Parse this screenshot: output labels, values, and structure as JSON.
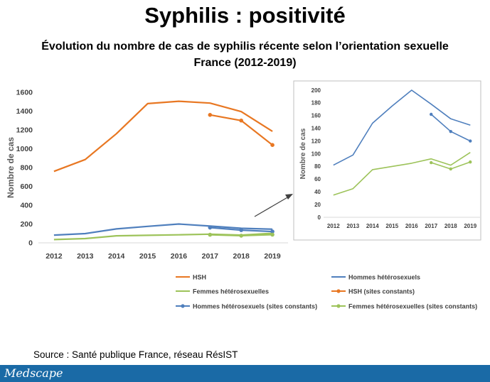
{
  "slide": {
    "title": "Syphilis : positivité",
    "subtitle_line1": "Évolution du nombre de cas de syphilis récente selon l’orientation sexuelle",
    "subtitle_line2": "France (2012-2019)",
    "source": "Source : Santé publique France, réseau RésIST",
    "brand": "Medscape"
  },
  "chart_data": [
    {
      "type": "line",
      "title": "",
      "xlabel": "",
      "ylabel": "Nombre de cas",
      "x": [
        "2012",
        "2013",
        "2014",
        "2015",
        "2016",
        "2017",
        "2018",
        "2019"
      ],
      "ylim": [
        0,
        1600
      ],
      "yticks": [
        0,
        200,
        400,
        600,
        800,
        1000,
        1200,
        1400,
        1600
      ],
      "grid": false,
      "legend": "bottom",
      "series": [
        {
          "name": "HSH",
          "color": "#e87722",
          "markers": false,
          "values": [
            760,
            885,
            1160,
            1480,
            1505,
            1485,
            1395,
            1185
          ]
        },
        {
          "name": "Hommes hétérosexuels",
          "color": "#4f7fbd",
          "markers": false,
          "values": [
            82,
            98,
            148,
            175,
            200,
            178,
            155,
            145
          ]
        },
        {
          "name": "Femmes hétérosexuelles",
          "color": "#9dc35a",
          "markers": false,
          "values": [
            35,
            45,
            75,
            80,
            85,
            92,
            82,
            102
          ]
        },
        {
          "name": "HSH (sites constants)",
          "color": "#e87722",
          "markers": true,
          "values": [
            null,
            null,
            null,
            null,
            null,
            1360,
            1300,
            1040
          ]
        },
        {
          "name": "Hommes hétérosexuels (sites constants)",
          "color": "#4f7fbd",
          "markers": true,
          "values": [
            null,
            null,
            null,
            null,
            null,
            162,
            135,
            120
          ]
        },
        {
          "name": "Femmes hétérosexuelles (sites constants)",
          "color": "#9dc35a",
          "markers": true,
          "values": [
            null,
            null,
            null,
            null,
            null,
            86,
            76,
            87
          ]
        }
      ]
    },
    {
      "type": "line",
      "title": "",
      "xlabel": "",
      "ylabel": "Nombre de cas",
      "x": [
        "2012",
        "2013",
        "2014",
        "2015",
        "2016",
        "2017",
        "2018",
        "2019"
      ],
      "ylim": [
        0,
        200
      ],
      "yticks": [
        0,
        20,
        40,
        60,
        80,
        100,
        120,
        140,
        160,
        180,
        200
      ],
      "grid": false,
      "series": [
        {
          "name": "Hommes hétérosexuels",
          "color": "#4f7fbd",
          "markers": false,
          "values": [
            82,
            98,
            148,
            175,
            200,
            178,
            155,
            145
          ]
        },
        {
          "name": "Femmes hétérosexuelles",
          "color": "#9dc35a",
          "markers": false,
          "values": [
            35,
            45,
            75,
            80,
            85,
            92,
            82,
            102
          ]
        },
        {
          "name": "Hommes hétérosexuels (sites constants)",
          "color": "#4f7fbd",
          "markers": true,
          "values": [
            null,
            null,
            null,
            null,
            null,
            162,
            135,
            120
          ]
        },
        {
          "name": "Femmes hétérosexuelles (sites constants)",
          "color": "#9dc35a",
          "markers": true,
          "values": [
            null,
            null,
            null,
            null,
            null,
            86,
            76,
            87
          ]
        }
      ]
    }
  ]
}
